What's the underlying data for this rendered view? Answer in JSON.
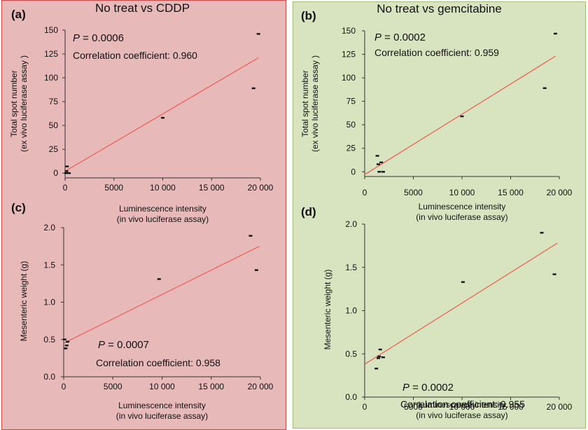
{
  "panels": {
    "left": {
      "title": "No treat vs CDDP"
    },
    "right": {
      "title": "No treat vs gemcitabine"
    }
  },
  "colors": {
    "fit_line": "#ee5a50",
    "points": "#111111",
    "left_bg": "#e8b9b9",
    "right_bg": "#d8e4c0"
  },
  "chart_data": [
    {
      "id": "a",
      "type": "scatter",
      "panel_label": "(a)",
      "title": "No treat vs CDDP",
      "p_label": "P",
      "p_value": " = 0.0006",
      "corr_label": "Correlation coefficient: 0.960",
      "ylabel_line1": "Total spot number",
      "ylabel_line2": "(ex vivo luciferase assay )",
      "xlabel_line1": "Luminescence intensity",
      "xlabel_line2": "(in vivo luciferase assay)",
      "xlim": [
        0,
        20000
      ],
      "ylim": [
        -5,
        150
      ],
      "xticks": [
        0,
        5000,
        10000,
        15000,
        20000
      ],
      "xtick_labels": [
        "0",
        "5000",
        "10 000",
        "15 000",
        "20 000"
      ],
      "yticks": [
        0,
        25,
        50,
        75,
        100,
        125,
        150
      ],
      "ytick_labels": [
        "0",
        "25",
        "50",
        "75",
        "100",
        "125",
        "150"
      ],
      "x": [
        100,
        150,
        200,
        400,
        10000,
        19300,
        19800
      ],
      "y": [
        0,
        2,
        7,
        0,
        58,
        89,
        146
      ],
      "fit": {
        "x": [
          0,
          19800
        ],
        "y": [
          2,
          121
        ]
      }
    },
    {
      "id": "b",
      "type": "scatter",
      "panel_label": "(b)",
      "title": "No treat vs gemcitabine",
      "p_label": "P",
      "p_value": " = 0.0002",
      "corr_label": "Correlation coefficient: 0.959",
      "ylabel_line1": "Total spot number",
      "ylabel_line2": "(ex vivo luciferase assay )",
      "xlabel_line1": "Luminescence intensity",
      "xlabel_line2": "(in vivo luciferase assay)",
      "xlim": [
        0,
        20000
      ],
      "ylim": [
        -5,
        150
      ],
      "xticks": [
        0,
        5000,
        10000,
        15000,
        20000
      ],
      "xtick_labels": [
        "0",
        "5000",
        "10 000",
        "15 000",
        "20 000"
      ],
      "yticks": [
        0,
        25,
        50,
        75,
        100,
        125,
        150
      ],
      "ytick_labels": [
        "0",
        "25",
        "50",
        "75",
        "100",
        "125",
        "150"
      ],
      "x": [
        1300,
        1400,
        1500,
        1700,
        1900,
        10000,
        18500,
        19600
      ],
      "y": [
        17,
        8,
        0,
        10,
        0,
        59,
        89,
        147
      ],
      "fit": {
        "x": [
          0,
          19600
        ],
        "y": [
          -3,
          123
        ]
      }
    },
    {
      "id": "c",
      "type": "scatter",
      "panel_label": "(c)",
      "p_label": "P",
      "p_value": " = 0.0007",
      "corr_label": "Correlation coefficient: 0.958",
      "ylabel_line1": "Mesenteric weight (g)",
      "xlabel_line1": "Luminescence intensity",
      "xlabel_line2": "(in vivo luciferase assay)",
      "xlim": [
        0,
        20000
      ],
      "ylim": [
        0,
        2.0
      ],
      "xticks": [
        0,
        5000,
        10000,
        15000,
        20000
      ],
      "xtick_labels": [
        "0",
        "5000",
        "10 000",
        "15 000",
        "20 000"
      ],
      "yticks": [
        0,
        0.5,
        1.0,
        1.5,
        2.0
      ],
      "ytick_labels": [
        "0.0",
        "0.5",
        "1.0",
        "1.5",
        "2.0"
      ],
      "x": [
        100,
        200,
        300,
        400,
        9700,
        19000,
        19600
      ],
      "y": [
        0.5,
        0.38,
        0.42,
        0.47,
        1.31,
        1.89,
        1.43
      ],
      "fit": {
        "x": [
          0,
          19900
        ],
        "y": [
          0.45,
          1.75
        ]
      }
    },
    {
      "id": "d",
      "type": "scatter",
      "panel_label": "(d)",
      "p_label": "P",
      "p_value": " = 0.0002",
      "corr_label": "Correlation coefficient: 0.955",
      "ylabel_line1": "Mesenteric weight (g)",
      "xlabel_line1": "Luminescence intensity",
      "xlabel_line2": "(in vivo luciferase assay)",
      "xlim": [
        0,
        20000
      ],
      "ylim": [
        0,
        2.0
      ],
      "xticks": [
        0,
        5000,
        10000,
        15000,
        20000
      ],
      "xtick_labels": [
        "0",
        "5000",
        "10 000",
        "15 000",
        "20 000"
      ],
      "yticks": [
        0,
        0.5,
        1.0,
        1.5,
        2.0
      ],
      "ytick_labels": [
        "0.0",
        "0.5",
        "1.0",
        "1.5",
        "2.0"
      ],
      "x": [
        1200,
        1400,
        1500,
        1600,
        1900,
        10100,
        18200,
        19500
      ],
      "y": [
        0.33,
        0.45,
        0.47,
        0.55,
        0.46,
        1.33,
        1.9,
        1.42
      ],
      "fit": {
        "x": [
          0,
          19800
        ],
        "y": [
          0.38,
          1.78
        ]
      }
    }
  ]
}
